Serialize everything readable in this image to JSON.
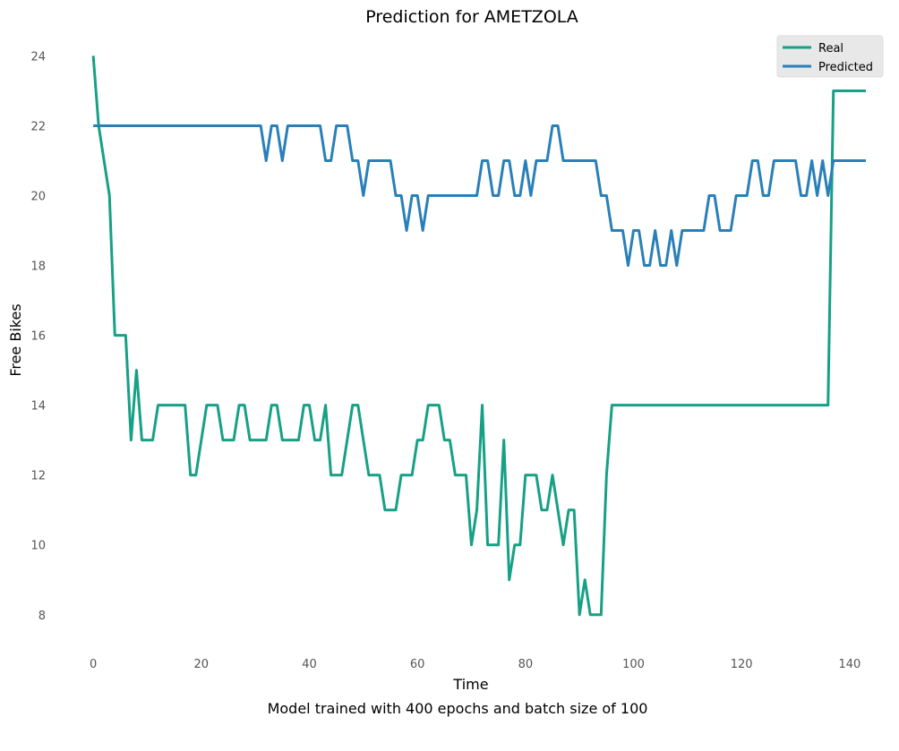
{
  "chart_data": {
    "type": "line",
    "title": "Prediction for AMETZOLA",
    "xlabel": "Time",
    "ylabel": "Free Bikes",
    "caption": "Model trained with 400 epochs and batch size of 100",
    "xlim": [
      -4,
      144
    ],
    "ylim": [
      7.2,
      24.6
    ],
    "xticks": [
      0,
      20,
      40,
      60,
      80,
      100,
      120,
      140
    ],
    "yticks": [
      8,
      10,
      12,
      14,
      16,
      18,
      20,
      22,
      24
    ],
    "grid": false,
    "legend": "top-right",
    "x": [
      0,
      1,
      2,
      3,
      4,
      5,
      6,
      7,
      8,
      9,
      10,
      11,
      12,
      13,
      14,
      15,
      16,
      17,
      18,
      19,
      20,
      21,
      22,
      23,
      24,
      25,
      26,
      27,
      28,
      29,
      30,
      31,
      32,
      33,
      34,
      35,
      36,
      37,
      38,
      39,
      40,
      41,
      42,
      43,
      44,
      45,
      46,
      47,
      48,
      49,
      50,
      51,
      52,
      53,
      54,
      55,
      56,
      57,
      58,
      59,
      60,
      61,
      62,
      63,
      64,
      65,
      66,
      67,
      68,
      69,
      70,
      71,
      72,
      73,
      74,
      75,
      76,
      77,
      78,
      79,
      80,
      81,
      82,
      83,
      84,
      85,
      86,
      87,
      88,
      89,
      90,
      91,
      92,
      93,
      94,
      95,
      96,
      97,
      98,
      99,
      100,
      101,
      102,
      103,
      104,
      105,
      106,
      107,
      108,
      109,
      110,
      111,
      112,
      113,
      114,
      115,
      116,
      117,
      118,
      119,
      120,
      121,
      122,
      123,
      124,
      125,
      126,
      127,
      128,
      129,
      130,
      131,
      132,
      133,
      134,
      135,
      136,
      137,
      138,
      139,
      140,
      141,
      142,
      143
    ],
    "series": [
      {
        "name": "Real",
        "color": "#16a085",
        "values": [
          24,
          22,
          21,
          20,
          16,
          16,
          16,
          13,
          15,
          13,
          13,
          13,
          14,
          14,
          14,
          14,
          14,
          14,
          12,
          12,
          13,
          14,
          14,
          14,
          13,
          13,
          13,
          14,
          14,
          13,
          13,
          13,
          13,
          14,
          14,
          13,
          13,
          13,
          13,
          14,
          14,
          13,
          13,
          14,
          12,
          12,
          12,
          13,
          14,
          14,
          13,
          12,
          12,
          12,
          11,
          11,
          11,
          12,
          12,
          12,
          13,
          13,
          14,
          14,
          14,
          13,
          13,
          12,
          12,
          12,
          10,
          11,
          14,
          10,
          10,
          10,
          13,
          9,
          10,
          10,
          12,
          12,
          12,
          11,
          11,
          12,
          11,
          10,
          11,
          11,
          8,
          9,
          8,
          8,
          8,
          12,
          14,
          14,
          14,
          14,
          14,
          14,
          14,
          14,
          14,
          14,
          14,
          14,
          14,
          14,
          14,
          14,
          14,
          14,
          14,
          14,
          14,
          14,
          14,
          14,
          14,
          14,
          14,
          14,
          14,
          14,
          14,
          14,
          14,
          14,
          14,
          14,
          14,
          14,
          14,
          14,
          14,
          23,
          23,
          23,
          23,
          23,
          23,
          23
        ]
      },
      {
        "name": "Predicted",
        "color": "#2980b9",
        "values": [
          22,
          22,
          22,
          22,
          22,
          22,
          22,
          22,
          22,
          22,
          22,
          22,
          22,
          22,
          22,
          22,
          22,
          22,
          22,
          22,
          22,
          22,
          22,
          22,
          22,
          22,
          22,
          22,
          22,
          22,
          22,
          22,
          21,
          22,
          22,
          21,
          22,
          22,
          22,
          22,
          22,
          22,
          22,
          21,
          21,
          22,
          22,
          22,
          21,
          21,
          20,
          21,
          21,
          21,
          21,
          21,
          20,
          20,
          19,
          20,
          20,
          19,
          20,
          20,
          20,
          20,
          20,
          20,
          20,
          20,
          20,
          20,
          21,
          21,
          20,
          20,
          21,
          21,
          20,
          20,
          21,
          20,
          21,
          21,
          21,
          22,
          22,
          21,
          21,
          21,
          21,
          21,
          21,
          21,
          20,
          20,
          19,
          19,
          19,
          18,
          19,
          19,
          18,
          18,
          19,
          18,
          18,
          19,
          18,
          19,
          19,
          19,
          19,
          19,
          20,
          20,
          19,
          19,
          19,
          20,
          20,
          20,
          21,
          21,
          20,
          20,
          21,
          21,
          21,
          21,
          21,
          20,
          20,
          21,
          20,
          21,
          20,
          21,
          21,
          21,
          21,
          21,
          21,
          21
        ]
      }
    ]
  }
}
